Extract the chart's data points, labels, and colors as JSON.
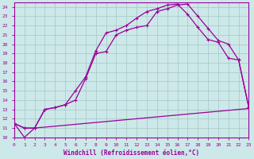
{
  "xlabel": "Windchill (Refroidissement éolien,°C)",
  "bg_color": "#cde8e8",
  "grid_color": "#aacccc",
  "line_color": "#990099",
  "xlim": [
    0,
    23
  ],
  "ylim": [
    10,
    24.5
  ],
  "xticks": [
    0,
    1,
    2,
    3,
    4,
    5,
    6,
    7,
    8,
    9,
    10,
    11,
    12,
    13,
    14,
    15,
    16,
    17,
    18,
    19,
    20,
    21,
    22,
    23
  ],
  "yticks": [
    10,
    11,
    12,
    13,
    14,
    15,
    16,
    17,
    18,
    19,
    20,
    21,
    22,
    23,
    24
  ],
  "curve1_x": [
    0,
    1,
    2,
    3,
    4,
    5,
    6,
    7,
    8,
    9,
    10,
    11,
    12,
    13,
    14,
    15,
    16,
    17,
    18,
    19,
    20,
    21,
    22,
    23
  ],
  "curve1_y": [
    11.5,
    10.0,
    11.0,
    11.1,
    11.2,
    11.3,
    11.4,
    11.5,
    11.6,
    11.7,
    11.8,
    11.9,
    12.0,
    12.1,
    12.2,
    12.3,
    12.4,
    12.5,
    12.6,
    12.7,
    12.8,
    12.9,
    13.0,
    13.1
  ],
  "curve2_x": [
    0,
    1,
    2,
    3,
    4,
    5,
    6,
    7,
    8,
    9,
    10,
    11,
    12,
    13,
    14,
    15,
    16,
    17,
    18,
    19,
    20,
    21,
    22,
    23
  ],
  "curve2_y": [
    11.5,
    11.0,
    11.0,
    13.0,
    13.2,
    13.5,
    15.0,
    16.5,
    19.3,
    21.2,
    21.5,
    22.0,
    22.8,
    23.5,
    23.8,
    24.2,
    24.3,
    23.2,
    21.8,
    20.5,
    20.2,
    18.5,
    18.3,
    13.2
  ],
  "curve3_x": [
    0,
    1,
    2,
    3,
    4,
    5,
    6,
    7,
    8,
    9,
    10,
    11,
    12,
    13,
    14,
    15,
    16,
    17,
    18,
    19,
    20,
    21,
    22,
    23
  ],
  "curve3_y": [
    11.5,
    11.0,
    11.0,
    13.0,
    13.2,
    13.5,
    14.0,
    16.3,
    19.0,
    19.2,
    21.0,
    21.5,
    21.8,
    22.0,
    23.5,
    23.8,
    24.2,
    24.3,
    23.0,
    21.7,
    20.4,
    20.0,
    18.3,
    13.2
  ]
}
